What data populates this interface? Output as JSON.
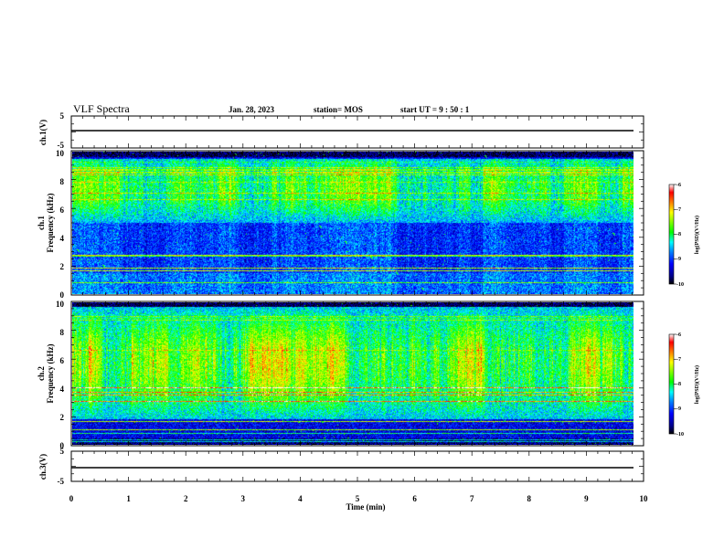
{
  "header": {
    "title": "VLF Spectra",
    "date": "Jan. 28, 2023",
    "station": "station= MOS",
    "start": "start  UT =   9 : 50 : 1"
  },
  "chart_data": [
    {
      "type": "line",
      "panel": "ch1-waveform",
      "ylabel": "ch.1(V)",
      "ylim": [
        -5,
        5
      ],
      "y_ticks": [
        "5",
        "-5"
      ],
      "xlim": [
        0,
        10
      ],
      "series": [
        {
          "values_description_free": true,
          "level": 0
        }
      ]
    },
    {
      "type": "heatmap",
      "panel": "ch1-spectrogram",
      "ylabel": "ch.1\nFrequency (kHz)",
      "ylabel_lines": [
        "ch.1",
        "Frequency (kHz)"
      ],
      "ylim": [
        0,
        10
      ],
      "y_ticks": [
        "0",
        "2",
        "4",
        "6",
        "8",
        "10"
      ],
      "xlim": [
        0,
        10
      ],
      "colorbar": {
        "label": "log(PSD)(V²/Hz)",
        "range": [
          -10,
          -6
        ],
        "ticks": [
          "-6",
          "-7",
          "-8",
          "-9",
          "-10"
        ]
      },
      "intensity_profile_ch1": true
    },
    {
      "type": "heatmap",
      "panel": "ch2-spectrogram",
      "ylabel_lines": [
        "ch.2",
        "Frequency (kHz)"
      ],
      "ylim": [
        0,
        10
      ],
      "y_ticks": [
        "0",
        "2",
        "4",
        "6",
        "8",
        "10"
      ],
      "xlim": [
        0,
        10
      ],
      "colorbar": {
        "label": "log(PSD)(V²/Hz)",
        "range": [
          -10,
          -6
        ],
        "ticks": [
          "-6",
          "-7",
          "-8",
          "-9",
          "-10"
        ]
      }
    },
    {
      "type": "line",
      "panel": "ch3-waveform",
      "ylabel": "ch.3(V)",
      "ylim": [
        -5,
        5
      ],
      "y_ticks": [
        "5",
        "-5"
      ],
      "xlim": [
        0,
        10
      ]
    }
  ],
  "x_axis": {
    "label": "Time  (min)",
    "ticks": [
      "0",
      "1",
      "2",
      "3",
      "4",
      "5",
      "6",
      "7",
      "8",
      "9",
      "10"
    ]
  },
  "colors": {
    "colormap": [
      "#000000",
      "#00008b",
      "#0000ff",
      "#0080ff",
      "#00ffff",
      "#00ff00",
      "#80ff00",
      "#ffff00",
      "#ff8000",
      "#ff0000",
      "#ffffff"
    ]
  }
}
